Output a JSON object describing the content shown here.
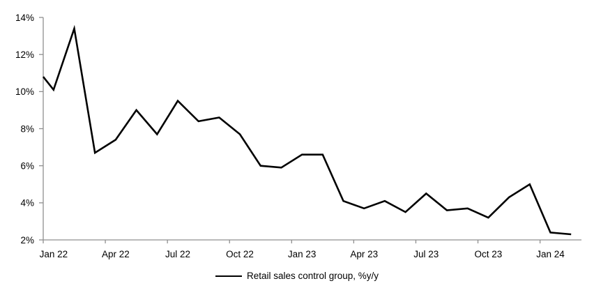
{
  "chart_data": {
    "type": "line",
    "title": "",
    "categories": [
      "Jan 22",
      "Feb 22",
      "Mar 22",
      "Apr 22",
      "May 22",
      "Jun 22",
      "Jul 22",
      "Aug 22",
      "Sep 22",
      "Oct 22",
      "Nov 22",
      "Dec 22",
      "Jan 23",
      "Feb 23",
      "Mar 23",
      "Apr 23",
      "May 23",
      "Jun 23",
      "Jul 23",
      "Aug 23",
      "Sep 23",
      "Oct 23",
      "Nov 23",
      "Dec 23",
      "Jan 24",
      "Feb 24"
    ],
    "series": [
      {
        "name": "Retail sales control group, %y/y",
        "color": "#000000",
        "values": [
          10.1,
          13.4,
          6.7,
          7.4,
          9.0,
          7.7,
          9.5,
          8.4,
          8.6,
          7.7,
          6.0,
          5.9,
          6.6,
          6.6,
          4.1,
          3.7,
          4.1,
          3.5,
          4.5,
          3.6,
          3.7,
          3.2,
          4.3,
          5.0,
          2.4,
          2.3
        ]
      }
    ],
    "left_edge_clip_value": 10.8,
    "ylim": [
      2,
      14
    ],
    "y_tick_step": 2,
    "y_tick_labels": [
      "2%",
      "4%",
      "6%",
      "8%",
      "10%",
      "12%",
      "14%"
    ],
    "x_tick_labels": [
      "Jan 22",
      "Apr 22",
      "Jul 22",
      "Oct 22",
      "Jan 23",
      "Apr 23",
      "Jul 23",
      "Oct 23",
      "Jan 24"
    ],
    "x_tick_every_months": 3,
    "grid": false,
    "legend": {
      "position": "bottom-center",
      "label": "Retail sales control group, %y/y"
    },
    "colors": {
      "line": "#000000",
      "axis": "#8f8f8f",
      "text": "#000000",
      "background": "#ffffff"
    }
  }
}
